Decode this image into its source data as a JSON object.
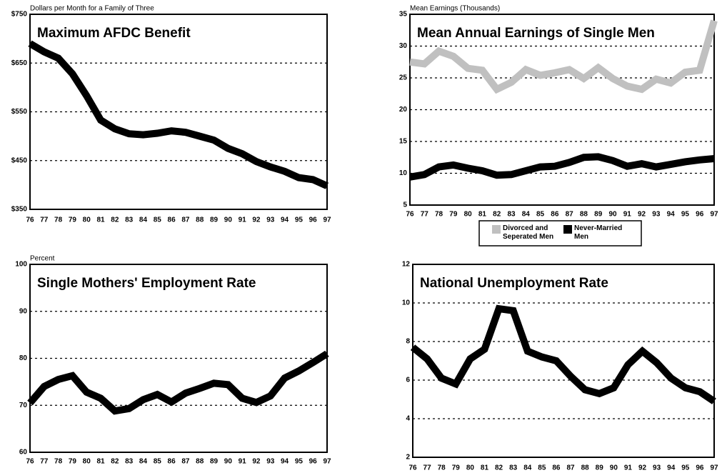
{
  "chart_data": [
    {
      "type": "line",
      "title": "Maximum AFDC Benefit",
      "ylabel": "Dollars per Month for a Family of Three",
      "categories": [
        "76",
        "77",
        "78",
        "79",
        "80",
        "81",
        "82",
        "83",
        "84",
        "85",
        "86",
        "87",
        "88",
        "89",
        "90",
        "91",
        "92",
        "93",
        "94",
        "95",
        "96",
        "97"
      ],
      "values": [
        690,
        673,
        660,
        628,
        583,
        533,
        515,
        505,
        503,
        506,
        511,
        508,
        500,
        492,
        475,
        464,
        448,
        437,
        428,
        415,
        411,
        398
      ],
      "color": "#000000",
      "ylim": [
        350,
        750
      ],
      "yticks": [
        {
          "value": 350,
          "label": "$350"
        },
        {
          "value": 450,
          "label": "$450"
        },
        {
          "value": 550,
          "label": "$550"
        },
        {
          "value": 650,
          "label": "$650"
        },
        {
          "value": 750,
          "label": "$750"
        }
      ],
      "grid": true
    },
    {
      "type": "line",
      "title": "Mean Annual Earnings of Single Men",
      "ylabel": "Mean Earnings (Thousands)",
      "categories": [
        "76",
        "77",
        "78",
        "79",
        "80",
        "81",
        "82",
        "83",
        "84",
        "85",
        "86",
        "87",
        "88",
        "89",
        "90",
        "91",
        "92",
        "93",
        "94",
        "95",
        "96",
        "97"
      ],
      "series": [
        {
          "name": "Divorced and Seperated Men",
          "color": "#c0c0c0",
          "values": [
            27.5,
            27.2,
            29.2,
            28.4,
            26.5,
            26.2,
            23.2,
            24.3,
            26.3,
            25.4,
            25.8,
            26.3,
            24.9,
            26.6,
            24.9,
            23.7,
            23.2,
            24.8,
            24.2,
            25.9,
            26.2,
            34
          ]
        },
        {
          "name": "Never-Married Men",
          "color": "#000000",
          "values": [
            9.4,
            9.8,
            11.0,
            11.3,
            10.8,
            10.4,
            9.7,
            9.8,
            10.4,
            11.0,
            11.1,
            11.7,
            12.5,
            12.6,
            12.0,
            11.1,
            11.5,
            11.0,
            11.4,
            11.8,
            12.1,
            12.3
          ]
        }
      ],
      "ylim": [
        5,
        35
      ],
      "yticks": [
        5,
        10,
        15,
        20,
        25,
        30,
        35
      ],
      "grid": true,
      "legend": "bottom"
    },
    {
      "type": "line",
      "title": "Single Mothers' Employment Rate",
      "ylabel": "Percent",
      "categories": [
        "76",
        "77",
        "78",
        "79",
        "80",
        "81",
        "82",
        "83",
        "84",
        "85",
        "86",
        "87",
        "88",
        "89",
        "90",
        "91",
        "92",
        "93",
        "94",
        "95",
        "96",
        "97"
      ],
      "values": [
        70.5,
        74,
        75.5,
        76.3,
        72.8,
        71.5,
        68.8,
        69.3,
        71.2,
        72.3,
        70.7,
        72.6,
        73.6,
        74.7,
        74.4,
        71.5,
        70.6,
        72.0,
        75.8,
        77.3,
        79.1,
        81
      ],
      "color": "#000000",
      "ylim": [
        60,
        100
      ],
      "yticks": [
        60,
        70,
        80,
        90,
        100
      ],
      "grid": true
    },
    {
      "type": "line",
      "title": "National Unemployment Rate",
      "categories": [
        "76",
        "77",
        "78",
        "79",
        "80",
        "81",
        "82",
        "83",
        "84",
        "85",
        "86",
        "87",
        "88",
        "89",
        "90",
        "91",
        "92",
        "93",
        "94",
        "95",
        "96",
        "97"
      ],
      "values": [
        7.7,
        7.1,
        6.1,
        5.8,
        7.1,
        7.6,
        9.7,
        9.6,
        7.5,
        7.2,
        7.0,
        6.2,
        5.5,
        5.3,
        5.6,
        6.8,
        7.5,
        6.9,
        6.1,
        5.6,
        5.4,
        4.9
      ],
      "color": "#000000",
      "ylim": [
        2,
        12
      ],
      "yticks": [
        2,
        4,
        6,
        8,
        10,
        12
      ],
      "grid": true
    }
  ]
}
